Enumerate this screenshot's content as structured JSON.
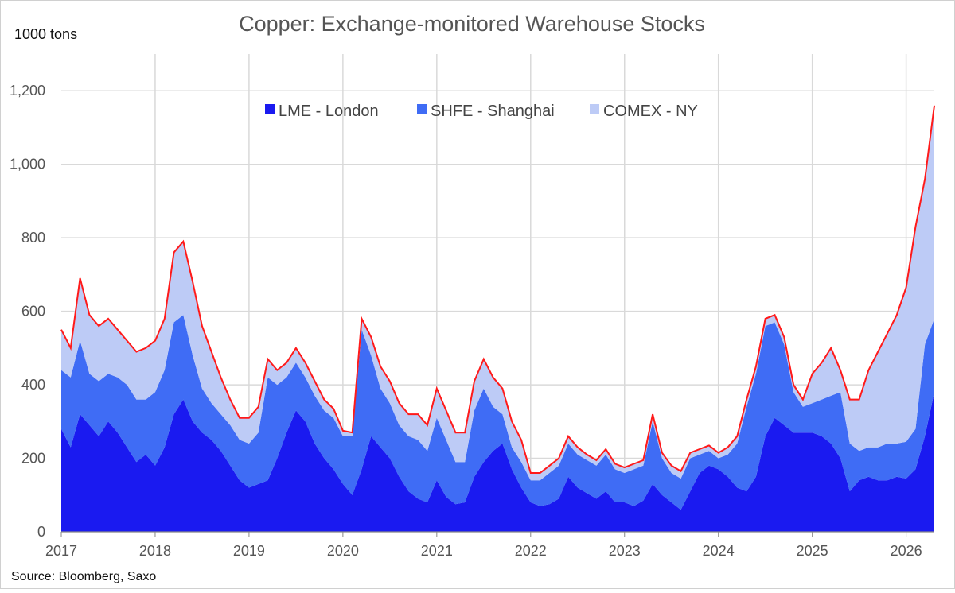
{
  "chart_data": {
    "type": "area",
    "stacked": true,
    "title": "Copper: Exchange-monitored Warehouse Stocks",
    "ylabel": "1000 tons",
    "source": "Source: Bloomberg, Saxo",
    "ylim": [
      0,
      1300
    ],
    "xlim": [
      2017.0,
      2026.3
    ],
    "yticks": [
      0,
      200,
      400,
      600,
      800,
      1000,
      1200
    ],
    "ytick_labels": [
      "0",
      "200",
      "400",
      "600",
      "800",
      "1,000",
      "1,200"
    ],
    "xticks": [
      2017,
      2018,
      2019,
      2020,
      2021,
      2022,
      2023,
      2024,
      2025,
      2026
    ],
    "xtick_labels": [
      "2017",
      "2018",
      "2019",
      "2020",
      "2021",
      "2022",
      "2023",
      "2024",
      "2025",
      "2026"
    ],
    "grid": true,
    "legend_position": "top-center",
    "total_line_color": "#ff1a1a",
    "series": [
      {
        "name": "LME - London",
        "color": "#1a1af0",
        "x": [
          2017.0,
          2017.1,
          2017.2,
          2017.3,
          2017.4,
          2017.5,
          2017.6,
          2017.7,
          2017.8,
          2017.9,
          2018.0,
          2018.1,
          2018.2,
          2018.3,
          2018.4,
          2018.5,
          2018.6,
          2018.7,
          2018.8,
          2018.9,
          2019.0,
          2019.1,
          2019.2,
          2019.3,
          2019.4,
          2019.5,
          2019.6,
          2019.7,
          2019.8,
          2019.9,
          2020.0,
          2020.1,
          2020.2,
          2020.3,
          2020.4,
          2020.5,
          2020.6,
          2020.7,
          2020.8,
          2020.9,
          2021.0,
          2021.1,
          2021.2,
          2021.3,
          2021.4,
          2021.5,
          2021.6,
          2021.7,
          2021.8,
          2021.9,
          2022.0,
          2022.1,
          2022.2,
          2022.3,
          2022.4,
          2022.5,
          2022.6,
          2022.7,
          2022.8,
          2022.9,
          2023.0,
          2023.1,
          2023.2,
          2023.3,
          2023.4,
          2023.5,
          2023.6,
          2023.7,
          2023.8,
          2023.9,
          2024.0,
          2024.1,
          2024.2,
          2024.3,
          2024.4,
          2024.5,
          2024.6,
          2024.7,
          2024.8,
          2024.9,
          2025.0,
          2025.1,
          2025.2,
          2025.3,
          2025.4,
          2025.5,
          2025.6,
          2025.7,
          2025.8,
          2025.9,
          2026.0,
          2026.1,
          2026.2,
          2026.3
        ],
        "values": [
          280,
          230,
          320,
          290,
          260,
          300,
          270,
          230,
          190,
          210,
          180,
          230,
          320,
          360,
          300,
          270,
          250,
          220,
          180,
          140,
          120,
          130,
          140,
          200,
          270,
          330,
          300,
          240,
          200,
          170,
          130,
          100,
          170,
          260,
          230,
          200,
          150,
          110,
          90,
          80,
          140,
          95,
          75,
          80,
          150,
          190,
          220,
          240,
          170,
          120,
          80,
          70,
          75,
          90,
          150,
          120,
          105,
          90,
          110,
          80,
          80,
          70,
          85,
          130,
          100,
          80,
          60,
          110,
          160,
          180,
          170,
          150,
          120,
          110,
          150,
          260,
          310,
          290,
          270,
          270,
          270,
          260,
          240,
          200,
          110,
          140,
          150,
          140,
          140,
          150,
          145,
          170,
          260,
          380
        ]
      },
      {
        "name": "SHFE - Shanghai",
        "color": "#3f6cf5",
        "values": [
          160,
          190,
          200,
          140,
          150,
          130,
          150,
          170,
          170,
          150,
          200,
          210,
          250,
          230,
          180,
          120,
          100,
          100,
          110,
          110,
          120,
          140,
          280,
          200,
          150,
          130,
          120,
          130,
          130,
          140,
          130,
          160,
          380,
          220,
          160,
          150,
          140,
          150,
          160,
          140,
          170,
          155,
          115,
          110,
          180,
          200,
          120,
          80,
          60,
          70,
          60,
          70,
          85,
          90,
          90,
          90,
          90,
          90,
          100,
          90,
          80,
          100,
          95,
          170,
          100,
          80,
          85,
          90,
          50,
          40,
          30,
          60,
          120,
          230,
          280,
          300,
          260,
          220,
          110,
          70,
          80,
          100,
          130,
          180,
          130,
          80,
          80,
          90,
          100,
          90,
          100,
          110,
          250,
          200
        ]
      },
      {
        "name": "COMEX - NY",
        "color": "#bdcbf6",
        "values": [
          110,
          80,
          170,
          160,
          150,
          150,
          130,
          120,
          130,
          140,
          140,
          140,
          190,
          200,
          200,
          170,
          140,
          100,
          70,
          60,
          70,
          70,
          50,
          40,
          40,
          40,
          40,
          40,
          30,
          25,
          15,
          10,
          30,
          50,
          60,
          60,
          60,
          60,
          70,
          70,
          80,
          80,
          80,
          80,
          80,
          80,
          80,
          70,
          70,
          60,
          20,
          20,
          20,
          20,
          20,
          20,
          15,
          15,
          15,
          15,
          15,
          15,
          15,
          20,
          15,
          20,
          20,
          15,
          15,
          15,
          15,
          20,
          20,
          20,
          20,
          20,
          20,
          20,
          20,
          20,
          80,
          100,
          130,
          60,
          120,
          140,
          210,
          260,
          300,
          350,
          420,
          550,
          450,
          580
        ]
      }
    ]
  }
}
